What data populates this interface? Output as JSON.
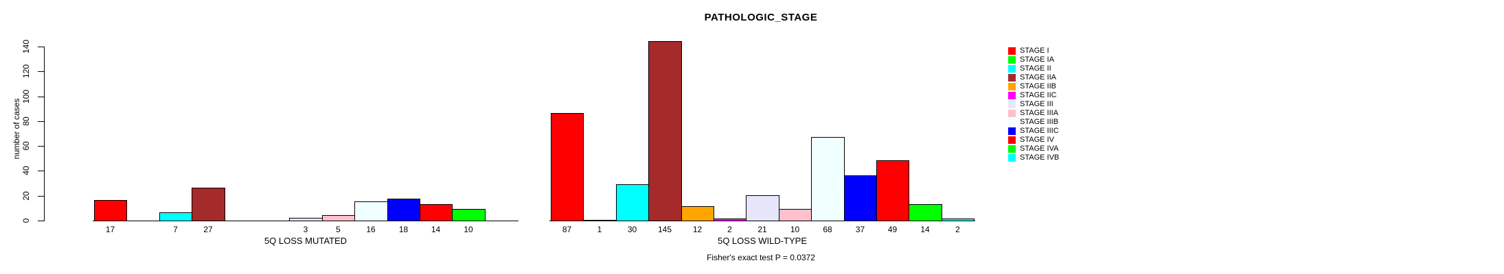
{
  "chart_data": {
    "type": "bar",
    "title": "PATHOLOGIC_STAGE",
    "ylabel": "number of cases",
    "ylim": [
      0,
      145
    ],
    "yticks": [
      0,
      20,
      40,
      60,
      80,
      100,
      120,
      140
    ],
    "grid": false,
    "legend_position": "right",
    "categories": [
      "STAGE I",
      "STAGE IA",
      "STAGE II",
      "STAGE IIA",
      "STAGE IIB",
      "STAGE IIC",
      "STAGE III",
      "STAGE IIIA",
      "STAGE IIIB",
      "STAGE IIIC",
      "STAGE IV",
      "STAGE IVA",
      "STAGE IVB"
    ],
    "colors": [
      "#FF0000",
      "#00FF00",
      "#00FFFF",
      "#A52A2A",
      "#FFA500",
      "#FF00FF",
      "#E6E6FA",
      "#FFC0CB",
      "#F0FFFF",
      "#0000FF",
      "#FF0000",
      "#00FF00",
      "#00FFFF"
    ],
    "series": [
      {
        "name": "5Q LOSS MUTATED",
        "values": [
          17,
          0,
          7,
          27,
          0,
          0,
          3,
          5,
          16,
          18,
          14,
          10,
          0
        ]
      },
      {
        "name": "5Q LOSS WILD-TYPE",
        "values": [
          87,
          1,
          30,
          145,
          12,
          2,
          21,
          10,
          68,
          37,
          49,
          14,
          2
        ]
      }
    ],
    "annotation": "Fisher's exact test P = 0.0372"
  }
}
